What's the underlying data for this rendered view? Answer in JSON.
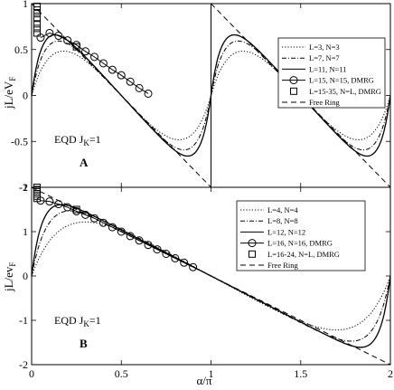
{
  "chart_data": [
    {
      "type": "line",
      "panel_label": "A",
      "annotation": "EQD J",
      "annotation_sub": "K",
      "annotation_tail": "=1",
      "ylabel": "jL/eV",
      "ylabel_sub": "F",
      "xlabel": "α/π",
      "xlim": [
        0,
        2
      ],
      "ylim": [
        -1,
        1
      ],
      "xticks": [
        0,
        0.5,
        1,
        1.5,
        2
      ],
      "xtick_labels": [
        "",
        "",
        "",
        "",
        ""
      ],
      "yticks": [
        -1,
        -0.5,
        0,
        0.5,
        1
      ],
      "ytick_labels": [
        "-1",
        "-0.5",
        "0",
        "0.5",
        "1"
      ],
      "legend": [
        "L=3, N=3",
        "L=7, N=7",
        "L=11, N=11",
        "L=15, N=15, DMRG",
        "L=15-35, N=L, DMRG",
        "Free Ring"
      ],
      "series": [
        {
          "name": "L=3, N=3",
          "style": "dotted",
          "steep": 6,
          "x": [
            0,
            0.05,
            0.1,
            0.15,
            0.2,
            0.25,
            0.3,
            0.4,
            0.5,
            0.6,
            0.7,
            0.8,
            0.9,
            1.0,
            1.1,
            1.2,
            1.3,
            1.4,
            1.5,
            1.6,
            1.7,
            1.8,
            1.85,
            1.9,
            1.95,
            2.0
          ],
          "y": [
            0,
            0.36,
            0.5,
            0.52,
            0.49,
            0.45,
            0.4,
            0.31,
            0.22,
            0.13,
            0.04,
            -0.08,
            -0.3,
            0,
            0.3,
            0.47,
            0.48,
            0.43,
            0.36,
            0.27,
            0.2,
            0.13,
            0.08,
            0,
            0,
            0
          ]
        },
        {
          "name": "L=7, N=7",
          "style": "dashdot",
          "steep": 10
        },
        {
          "name": "L=11, N=11",
          "style": "solid",
          "steep": 14
        },
        {
          "name": "L=15, N=15, DMRG",
          "style": "circles",
          "x": [
            0.05,
            0.1,
            0.15,
            0.2,
            0.25,
            0.3,
            0.35,
            0.4,
            0.45,
            0.5,
            0.55,
            0.6,
            0.65
          ],
          "y": [
            0.63,
            0.68,
            0.65,
            0.6,
            0.55,
            0.48,
            0.42,
            0.35,
            0.28,
            0.22,
            0.15,
            0.08,
            0.02
          ]
        },
        {
          "name": "L=15-35, N=L, DMRG",
          "style": "squares",
          "x": [
            0.03,
            0.03,
            0.03,
            0.03,
            0.03,
            0.03,
            0.03,
            0.25
          ],
          "y": [
            0.73,
            0.78,
            0.84,
            0.89,
            0.93,
            0.97,
            0.68,
            0.53
          ]
        },
        {
          "name": "Free Ring",
          "style": "dashed",
          "x": [
            0,
            1,
            1,
            2
          ],
          "y": [
            1,
            -1,
            1,
            -1
          ]
        }
      ]
    },
    {
      "type": "line",
      "panel_label": "B",
      "annotation": "EQD J",
      "annotation_sub": "K",
      "annotation_tail": "=1",
      "ylabel": "jL/ev",
      "ylabel_sub": "F",
      "xlabel": "α/π",
      "xlim": [
        0,
        2
      ],
      "ylim": [
        -2,
        2
      ],
      "xticks": [
        0,
        0.5,
        1,
        1.5,
        2
      ],
      "xtick_labels": [
        "0",
        "0.5",
        "1",
        "1.5",
        "2"
      ],
      "yticks": [
        -2,
        -1,
        0,
        1,
        2
      ],
      "ytick_labels": [
        "-2",
        "-1",
        "0",
        "1",
        "2"
      ],
      "legend": [
        "L=4, N=4",
        "L=8, N=8",
        "L=12, N=12",
        "L=16, N=16, DMRG",
        "L=16-24, N=L, DMRG",
        "Free Ring"
      ],
      "series": [
        {
          "name": "L=4, N=4",
          "style": "dotted",
          "steep": 5
        },
        {
          "name": "L=8, N=8",
          "style": "dashdot",
          "steep": 10
        },
        {
          "name": "L=12, N=12",
          "style": "solid",
          "steep": 16
        },
        {
          "name": "L=16, N=16, DMRG",
          "style": "circles",
          "x": [
            0.05,
            0.1,
            0.15,
            0.2,
            0.25,
            0.3,
            0.35,
            0.4,
            0.45,
            0.5,
            0.55,
            0.6,
            0.65,
            0.7,
            0.75,
            0.8,
            0.85,
            0.9
          ],
          "y": [
            1.7,
            1.68,
            1.62,
            1.55,
            1.46,
            1.38,
            1.3,
            1.2,
            1.1,
            1.0,
            0.9,
            0.8,
            0.7,
            0.6,
            0.5,
            0.4,
            0.3,
            0.2
          ]
        },
        {
          "name": "L=16-24, N=L, DMRG",
          "style": "squares",
          "x": [
            0.03,
            0.03,
            0.03,
            0.03,
            0.03,
            0.03,
            0.25
          ],
          "y": [
            1.85,
            1.9,
            1.95,
            2.0,
            1.8,
            1.75,
            1.5
          ]
        },
        {
          "name": "Free Ring",
          "style": "dashed",
          "x": [
            0,
            2
          ],
          "y": [
            2,
            -2
          ]
        }
      ]
    }
  ]
}
